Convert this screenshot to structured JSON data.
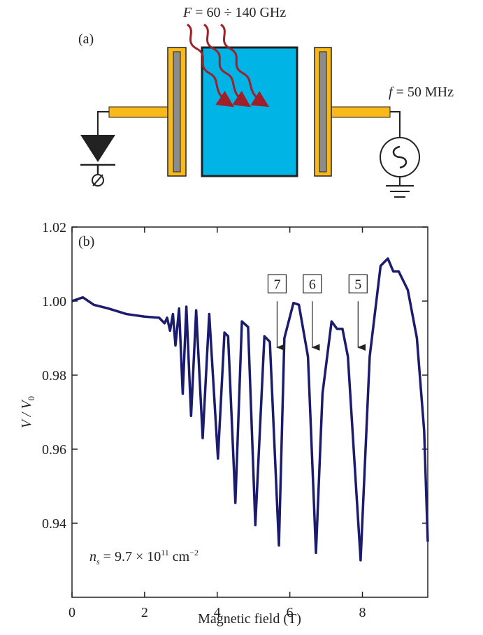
{
  "schematic": {
    "panel": "(a)",
    "freq_high_symbol": "F",
    "freq_high_text": " = 60 ÷ 140 GHz",
    "freq_low_symbol": "f",
    "freq_low_text": " = 50 MHz"
  },
  "chart_data": {
    "type": "line",
    "panel": "(b)",
    "x_label": "Magnetic field (T)",
    "y_label": {
      "v": "V",
      "sep": " / V",
      "sub": "0"
    },
    "ns_label": {
      "n": "n",
      "sub": "s",
      "text": " = 9.7 × 10",
      "exp": "11",
      "unit": " cm",
      "unit_exp": "−2"
    },
    "xlim": [
      0,
      9.8
    ],
    "ylim": [
      0.92,
      1.02
    ],
    "xticks": [
      0,
      2,
      4,
      6,
      8
    ],
    "yticks": [
      1.02,
      {
        "value": 1,
        "label": "1.00"
      },
      0.98,
      0.96,
      0.94
    ],
    "x": [
      0,
      0.3,
      0.6,
      1.0,
      1.5,
      2.0,
      2.4,
      2.55,
      2.62,
      2.7,
      2.78,
      2.85,
      2.95,
      3.05,
      3.15,
      3.28,
      3.42,
      3.6,
      3.78,
      4.02,
      4.2,
      4.3,
      4.5,
      4.68,
      4.85,
      5.05,
      5.3,
      5.45,
      5.7,
      5.85,
      6.1,
      6.25,
      6.5,
      6.72,
      6.9,
      7.15,
      7.3,
      7.45,
      7.6,
      7.95,
      8.2,
      8.5,
      8.7,
      8.85,
      9.0,
      9.25,
      9.5,
      9.7,
      9.8
    ],
    "series": [
      {
        "color": "#1c1c6e",
        "values": [
          1.0,
          1.001,
          0.999,
          0.998,
          0.9965,
          0.9958,
          0.9955,
          0.994,
          0.9955,
          0.992,
          0.9965,
          0.988,
          0.998,
          0.975,
          0.9985,
          0.969,
          0.9975,
          0.963,
          0.9965,
          0.9575,
          0.9915,
          0.9905,
          0.9455,
          0.9945,
          0.993,
          0.9395,
          0.9905,
          0.989,
          0.934,
          0.99,
          0.9995,
          0.999,
          0.985,
          0.932,
          0.975,
          0.9945,
          0.9925,
          0.9925,
          0.985,
          0.93,
          0.985,
          1.0095,
          1.0115,
          1.008,
          1.008,
          1.003,
          0.99,
          0.965,
          0.935
        ]
      }
    ],
    "annotations": [
      {
        "label": "7",
        "x": 5.65,
        "y": 0.9875
      },
      {
        "label": "6",
        "x": 6.62,
        "y": 0.9875
      },
      {
        "label": "5",
        "x": 7.88,
        "y": 0.9875
      }
    ]
  }
}
